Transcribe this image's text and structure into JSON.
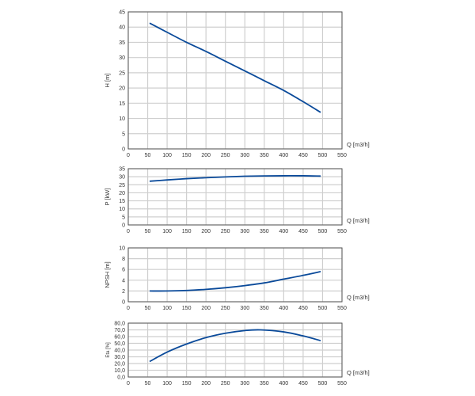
{
  "chart_data": [
    {
      "type": "line",
      "ylabel": "H [m]",
      "xlabel": "Q [m3/h]",
      "xlim": [
        0,
        550
      ],
      "ylim": [
        0,
        45
      ],
      "xticks": [
        "0",
        "50",
        "100",
        "150",
        "200",
        "250",
        "300",
        "350",
        "400",
        "450",
        "500",
        "550"
      ],
      "yticks": [
        "0",
        "5",
        "10",
        "15",
        "20",
        "25",
        "30",
        "35",
        "40",
        "45"
      ],
      "grid": true,
      "x": [
        55,
        100,
        150,
        200,
        250,
        300,
        350,
        400,
        450,
        495
      ],
      "y": [
        41.3,
        38.3,
        35.0,
        32.0,
        28.8,
        25.6,
        22.4,
        19.2,
        15.5,
        12.0
      ]
    },
    {
      "type": "line",
      "ylabel": "P [kW]",
      "xlabel": "Q [m3/h]",
      "xlim": [
        0,
        550
      ],
      "ylim": [
        0,
        35
      ],
      "xticks": [
        "0",
        "50",
        "100",
        "150",
        "200",
        "250",
        "300",
        "350",
        "400",
        "450",
        "500",
        "550"
      ],
      "yticks": [
        "0",
        "5",
        "10",
        "15",
        "20",
        "25",
        "30",
        "35"
      ],
      "grid": true,
      "x": [
        55,
        100,
        150,
        200,
        250,
        300,
        350,
        400,
        450,
        495
      ],
      "y": [
        27.2,
        28.0,
        28.8,
        29.4,
        29.9,
        30.3,
        30.5,
        30.6,
        30.6,
        30.4
      ]
    },
    {
      "type": "line",
      "ylabel": "NPSH [m]",
      "xlabel": "Q [m3/h]",
      "xlim": [
        0,
        550
      ],
      "ylim": [
        0,
        10
      ],
      "xticks": [
        "0",
        "50",
        "100",
        "150",
        "200",
        "250",
        "300",
        "350",
        "400",
        "450",
        "500",
        "550"
      ],
      "yticks": [
        "0",
        "2",
        "4",
        "6",
        "8",
        "10"
      ],
      "grid": true,
      "x": [
        55,
        100,
        150,
        200,
        250,
        300,
        350,
        400,
        450,
        495
      ],
      "y": [
        2.0,
        2.0,
        2.1,
        2.3,
        2.6,
        3.0,
        3.5,
        4.2,
        4.9,
        5.6
      ]
    },
    {
      "type": "line",
      "ylabel": "Eta [%]",
      "xlabel": "Q [m3/h]",
      "xlim": [
        0,
        550
      ],
      "ylim": [
        0,
        80
      ],
      "xticks": [
        "0",
        "50",
        "100",
        "150",
        "200",
        "250",
        "300",
        "350",
        "400",
        "450",
        "500",
        "550"
      ],
      "yticks": [
        "0,0",
        "10,0",
        "20,0",
        "30,0",
        "40,0",
        "50,0",
        "60,0",
        "70,0",
        "80,0"
      ],
      "grid": true,
      "x": [
        55,
        100,
        150,
        200,
        250,
        300,
        340,
        400,
        450,
        495
      ],
      "y": [
        23,
        37,
        49,
        58.5,
        65,
        69,
        70,
        67,
        61,
        54
      ]
    }
  ],
  "colors": {
    "curve": "#0a4a9a",
    "grid": "#cfcfcf",
    "frame": "#555555"
  }
}
